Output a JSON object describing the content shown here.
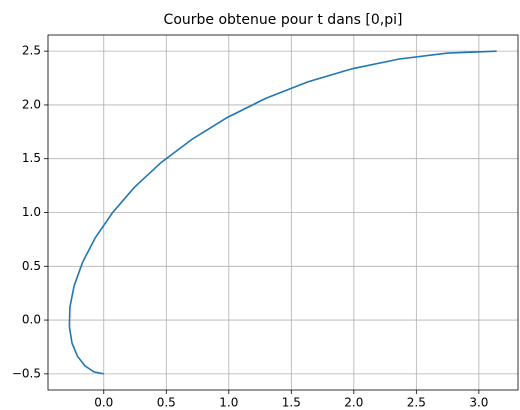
{
  "chart_data": {
    "type": "line",
    "title": "Courbe obtenue pour t dans [0,pi]",
    "x": [
      0,
      -0.078,
      -0.149,
      -0.21,
      -0.254,
      -0.275,
      -0.271,
      -0.237,
      -0.17,
      -0.068,
      0.071,
      0.246,
      0.458,
      0.706,
      0.986,
      1.295,
      1.632,
      1.989,
      2.364,
      2.75,
      3.142
    ],
    "series": [
      {
        "color": "#1f77b4",
        "values": [
          -0.5,
          -0.482,
          -0.427,
          -0.337,
          -0.214,
          -0.061,
          0.118,
          0.319,
          0.536,
          0.765,
          1,
          1.235,
          1.464,
          1.681,
          1.882,
          2.061,
          2.214,
          2.337,
          2.427,
          2.482,
          2.5
        ]
      }
    ],
    "xlim": [
      -0.446,
      3.313
    ],
    "ylim": [
      -0.65,
      2.65
    ],
    "xticks": [
      {
        "value": 0,
        "label": "0.0"
      },
      0.5,
      {
        "value": 1,
        "label": "1.0"
      },
      1.5,
      {
        "value": 2,
        "label": "2.0"
      },
      2.5,
      {
        "value": 3,
        "label": "3.0"
      }
    ],
    "yticks": [
      {
        "value": -0.5,
        "label": "−0.5"
      },
      {
        "value": 0,
        "label": "0.0"
      },
      0.5,
      {
        "value": 1,
        "label": "1.0"
      },
      1.5,
      {
        "value": 2,
        "label": "2.0"
      },
      2.5
    ],
    "grid": true
  }
}
